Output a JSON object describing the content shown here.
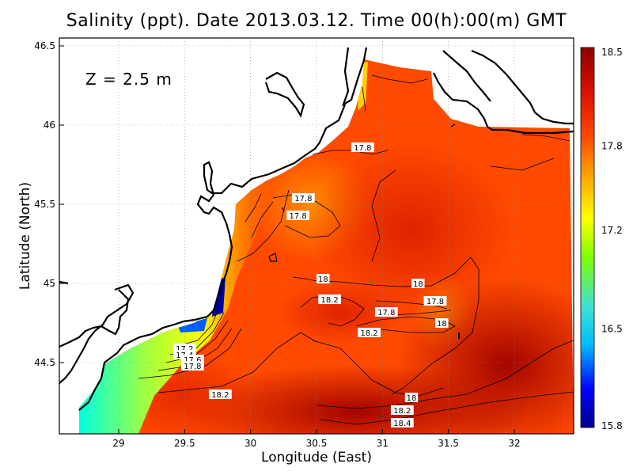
{
  "title": "Salinity (ppt). Date 2013.03.12. Time 00(h):00(m) GMT",
  "depth_label": "Z = 2.5 m",
  "xlabel": "Longitude (East)",
  "ylabel": "Latitude (North)",
  "chart_data": {
    "type": "heatmap",
    "variable": "Salinity (ppt)",
    "xlim": [
      28.55,
      32.45
    ],
    "ylim": [
      44.05,
      46.55
    ],
    "x_ticks": [
      29,
      29.5,
      30,
      30.5,
      31,
      31.5,
      32
    ],
    "y_ticks": [
      44.5,
      45,
      45.5,
      46,
      46.5
    ],
    "grid": true,
    "colorbar": {
      "ticks": [
        15.8,
        16.5,
        17.2,
        17.8,
        18.5
      ],
      "range": [
        15.8,
        18.5
      ],
      "colors": [
        "#00008b",
        "#0000ff",
        "#00bfff",
        "#40e0d0",
        "#7fff00",
        "#ffff00",
        "#ffa500",
        "#ff4500",
        "#ee2200",
        "#b00000",
        "#8b0000"
      ]
    },
    "contour_labels": [
      {
        "text": "17.8",
        "lon": 30.85,
        "lat": 45.86
      },
      {
        "text": "17.8",
        "lon": 30.4,
        "lat": 45.54
      },
      {
        "text": "17.8",
        "lon": 30.36,
        "lat": 45.43
      },
      {
        "text": "18",
        "lon": 30.55,
        "lat": 45.03
      },
      {
        "text": "18.2",
        "lon": 30.6,
        "lat": 44.9
      },
      {
        "text": "18",
        "lon": 31.27,
        "lat": 45.0
      },
      {
        "text": "17.8",
        "lon": 31.4,
        "lat": 44.89
      },
      {
        "text": "17.8",
        "lon": 31.03,
        "lat": 44.82
      },
      {
        "text": "18",
        "lon": 31.45,
        "lat": 44.75
      },
      {
        "text": "18.2",
        "lon": 30.9,
        "lat": 44.69
      },
      {
        "text": "17.2",
        "lon": 29.5,
        "lat": 44.59
      },
      {
        "text": "17.4",
        "lon": 29.5,
        "lat": 44.55
      },
      {
        "text": "17.6",
        "lon": 29.56,
        "lat": 44.52
      },
      {
        "text": "17.8",
        "lon": 29.56,
        "lat": 44.48
      },
      {
        "text": "18.2",
        "lon": 29.77,
        "lat": 44.3
      },
      {
        "text": "18",
        "lon": 31.22,
        "lat": 44.28
      },
      {
        "text": "18.2",
        "lon": 31.15,
        "lat": 44.2
      },
      {
        "text": "18.4",
        "lon": 31.15,
        "lat": 44.12
      }
    ]
  }
}
